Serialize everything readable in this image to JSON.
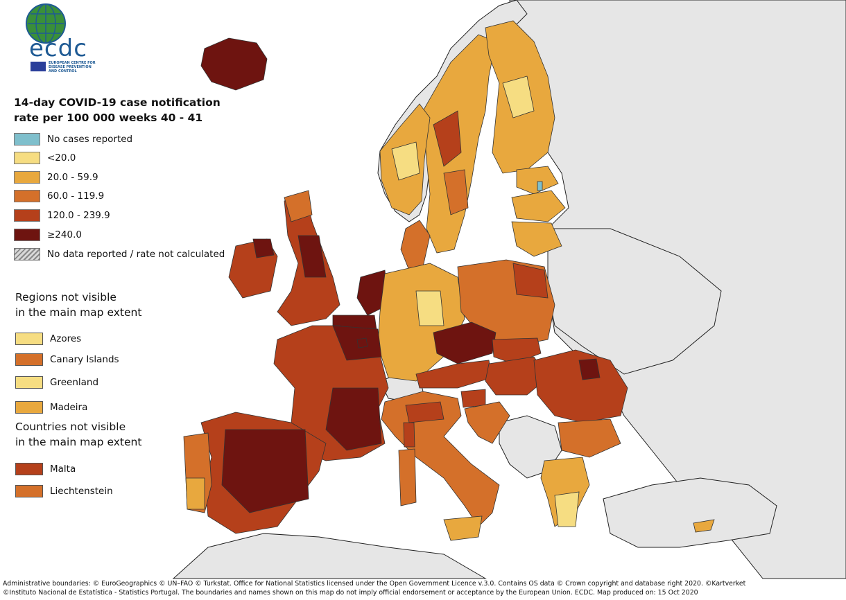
{
  "logo": {
    "text": "ecdc",
    "subtitle": "EUROPEAN CENTRE FOR DISEASE PREVENTION AND CONTROL"
  },
  "title_line1": "14-day COVID-19 case notification",
  "title_line2": "rate per 100 000 weeks 40 - 41",
  "legend": [
    {
      "label": "No cases reported",
      "color": "#7fbfcc"
    },
    {
      "label": "<20.0",
      "color": "#f6dd82"
    },
    {
      "label": "20.0 - 59.9",
      "color": "#e8a83e"
    },
    {
      "label": "60.0 - 119.9",
      "color": "#d4702a"
    },
    {
      "label": "120.0 - 239.9",
      "color": "#b5401b"
    },
    {
      "label": "≥240.0",
      "color": "#6e1410"
    },
    {
      "label": "No data reported / rate not calculated",
      "color": "hatch"
    }
  ],
  "regions_heading_1": "Regions not visible",
  "regions_heading_2": "in the main map extent",
  "regions": [
    {
      "label": "Azores",
      "color": "#f6dd82"
    },
    {
      "label": "Canary Islands",
      "color": "#d4702a"
    },
    {
      "label": "Greenland",
      "color": "#f6dd82"
    },
    {
      "label": "Madeira",
      "color": "#e8a83e"
    }
  ],
  "countries_heading_1": "Countries not visible",
  "countries_heading_2": "in the main map extent",
  "countries": [
    {
      "label": "Malta",
      "color": "#b5401b"
    },
    {
      "label": "Liechtenstein",
      "color": "#d4702a"
    }
  ],
  "footer_line1": "Administrative boundaries: © EuroGeographics © UN–FAO © Turkstat. Office for National Statistics licensed under the Open Government Licence v.3.0. Contains OS data © Crown copyright and database right 2020. ©Kartverket",
  "footer_line2": "©Instituto Nacional de Estatística - Statistics Portugal. The boundaries and names shown on this map do not imply official endorsement or acceptance by the European Union. ECDC. Map produced on: 15 Oct 2020",
  "colors": {
    "sea": "#ffffff",
    "non_eu_land": "#e6e6e6",
    "border": "#1a1a1a"
  }
}
